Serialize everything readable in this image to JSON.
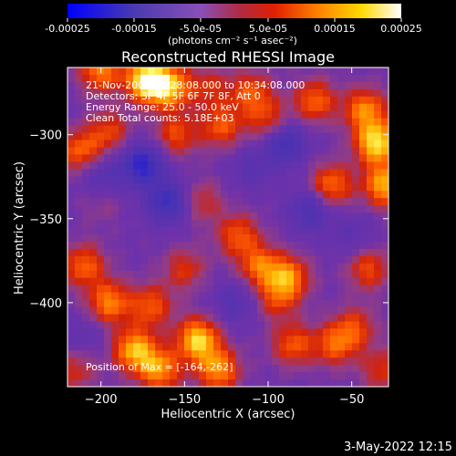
{
  "colorbar": {
    "ticks": [
      "-0.00025",
      "-0.00015",
      "-5.0e-05",
      "5.0e-05",
      "0.00015",
      "0.00025"
    ],
    "unit_label": "(photons cm⁻² s⁻¹ asec⁻²)"
  },
  "title": "Reconstructed RHESSI Image",
  "annotations": {
    "line1": "21-Nov-2002 10:28:08.000 to 10:34:08.000",
    "line2": "Detectors: 3F 4F 5F 6F 7F 8F, Att 0",
    "line3": "Energy Range: 25.0 - 50.0 keV",
    "line4": "Clean     Total counts: 5.18E+03",
    "position": "Position of Max = [-164,-262]"
  },
  "footer_date": "3-May-2022 12:15",
  "chart_data": {
    "type": "heatmap",
    "title": "Reconstructed RHESSI Image",
    "xlabel": "Heliocentric X (arcsec)",
    "ylabel": "Heliocentric Y (arcsec)",
    "xlim": [
      -220,
      -28
    ],
    "ylim": [
      -450,
      -260
    ],
    "xticks": [
      -200,
      -150,
      -100,
      -50
    ],
    "yticks": [
      -300,
      -350,
      -400
    ],
    "xtick_labels": [
      "−200",
      "−150",
      "−100",
      "−50"
    ],
    "ytick_labels": [
      "−300",
      "−350",
      "−400"
    ],
    "colorbar_range": [
      -0.00025,
      0.00025
    ],
    "colormap_stops": [
      "#0000ff",
      "#5a3aa0",
      "#9a52b6",
      "#cc2a00",
      "#ff8c00",
      "#ffff70",
      "#ffffff"
    ],
    "blobs": [
      {
        "x": -172,
        "y": -268,
        "v": 0.00024
      },
      {
        "x": -200,
        "y": -262,
        "v": 0.00015
      },
      {
        "x": -158,
        "y": -272,
        "v": 0.00016
      },
      {
        "x": -135,
        "y": -272,
        "v": 8e-05
      },
      {
        "x": -110,
        "y": -275,
        "v": 0.00012
      },
      {
        "x": -212,
        "y": -310,
        "v": 0.00013
      },
      {
        "x": -195,
        "y": -298,
        "v": 0.0001
      },
      {
        "x": -155,
        "y": -300,
        "v": 0.00011
      },
      {
        "x": -128,
        "y": -295,
        "v": 0.00012
      },
      {
        "x": -100,
        "y": -292,
        "v": 0.0001
      },
      {
        "x": -72,
        "y": -280,
        "v": 0.00013
      },
      {
        "x": -42,
        "y": -285,
        "v": 0.00015
      },
      {
        "x": -35,
        "y": -305,
        "v": 0.00021
      },
      {
        "x": -30,
        "y": -330,
        "v": 0.00018
      },
      {
        "x": -62,
        "y": -330,
        "v": 0.00014
      },
      {
        "x": -140,
        "y": -340,
        "v": 8e-05
      },
      {
        "x": -118,
        "y": -360,
        "v": 0.00012
      },
      {
        "x": -105,
        "y": -378,
        "v": 0.00013
      },
      {
        "x": -88,
        "y": -385,
        "v": 0.00015
      },
      {
        "x": -95,
        "y": -398,
        "v": 9e-05
      },
      {
        "x": -210,
        "y": -378,
        "v": 0.00013
      },
      {
        "x": -195,
        "y": -400,
        "v": 0.00015
      },
      {
        "x": -170,
        "y": -402,
        "v": 0.00012
      },
      {
        "x": -150,
        "y": -380,
        "v": 9e-05
      },
      {
        "x": -180,
        "y": -428,
        "v": 0.00018
      },
      {
        "x": -165,
        "y": -440,
        "v": 0.00016
      },
      {
        "x": -142,
        "y": -422,
        "v": 0.0002
      },
      {
        "x": -130,
        "y": -440,
        "v": 0.00016
      },
      {
        "x": -85,
        "y": -425,
        "v": 0.00012
      },
      {
        "x": -60,
        "y": -425,
        "v": 0.00012
      },
      {
        "x": -48,
        "y": -415,
        "v": 0.0001
      },
      {
        "x": -40,
        "y": -380,
        "v": 0.00011
      },
      {
        "x": -32,
        "y": -440,
        "v": 9e-05
      },
      {
        "x": -215,
        "y": -440,
        "v": 8e-05
      },
      {
        "x": -200,
        "y": -340,
        "v": 4e-05
      },
      {
        "x": -175,
        "y": -318,
        "v": -0.00016
      },
      {
        "x": -160,
        "y": -340,
        "v": -0.00014
      },
      {
        "x": -200,
        "y": -325,
        "v": -8e-05
      },
      {
        "x": -90,
        "y": -305,
        "v": -0.00013
      },
      {
        "x": -75,
        "y": -345,
        "v": -0.0001
      },
      {
        "x": -110,
        "y": -320,
        "v": -6e-05
      },
      {
        "x": -120,
        "y": -400,
        "v": -7e-05
      },
      {
        "x": -50,
        "y": -360,
        "v": -5e-05
      },
      {
        "x": -210,
        "y": -420,
        "v": -4e-05
      }
    ]
  }
}
